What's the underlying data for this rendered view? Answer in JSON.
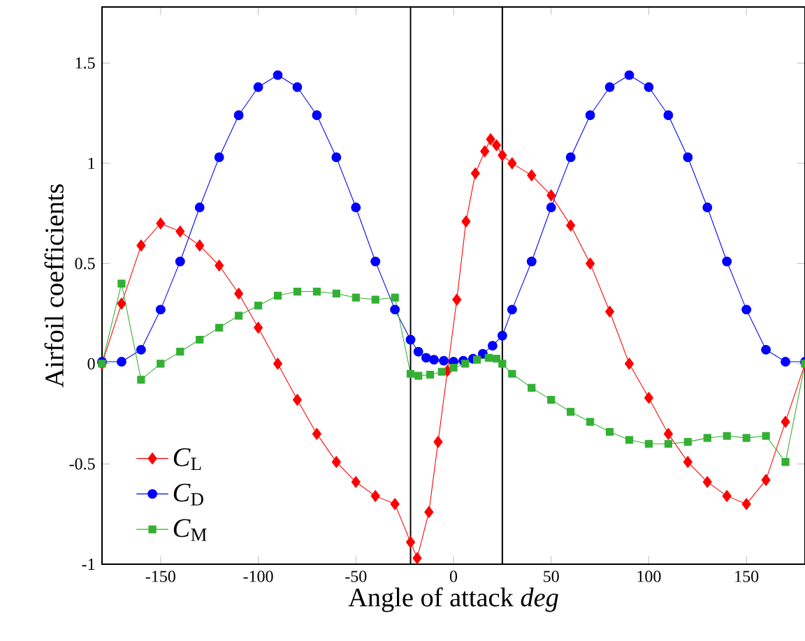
{
  "chart_data": {
    "type": "line",
    "xlabel": "Angle of attack *deg*",
    "ylabel": "Airfoil coefficients",
    "xlim": [
      -180,
      180
    ],
    "ylim": [
      -1,
      1.78
    ],
    "xticks": [
      -150,
      -100,
      -50,
      0,
      50,
      100,
      150
    ],
    "yticks": [
      -1,
      -0.5,
      0,
      0.5,
      1,
      1.5
    ],
    "legend": "bottom left",
    "grid": false,
    "line_style": "solid",
    "ref_lines": [
      {
        "axis": "x",
        "value": -22,
        "color": "#000000"
      },
      {
        "axis": "x",
        "value": 25,
        "color": "#000000"
      }
    ],
    "series": [
      {
        "name": "*C*$_{L}$",
        "color": "#ff0000",
        "marker": "diamond",
        "x": [
          -180,
          -170,
          -160,
          -150,
          -140,
          -130,
          -120,
          -110,
          -100,
          -90,
          -80,
          -70,
          -60,
          -50,
          -40,
          -30,
          -22,
          -18.6,
          -12.6,
          -7.9,
          -3.1,
          1.7,
          6.4,
          11.2,
          16,
          19,
          22,
          25,
          30,
          40,
          50,
          60,
          70,
          80,
          90,
          100,
          110,
          120,
          130,
          140,
          150,
          160,
          170,
          180
        ],
        "values": [
          0,
          0.3,
          0.59,
          0.7,
          0.66,
          0.59,
          0.49,
          0.35,
          0.18,
          0,
          -0.18,
          -0.35,
          -0.49,
          -0.59,
          -0.66,
          -0.7,
          -0.89,
          -0.97,
          -0.74,
          -0.39,
          -0.035,
          0.32,
          0.71,
          0.95,
          1.06,
          1.12,
          1.09,
          1.04,
          1.0,
          0.94,
          0.84,
          0.69,
          0.5,
          0.26,
          0,
          -0.17,
          -0.35,
          -0.49,
          -0.59,
          -0.66,
          -0.7,
          -0.58,
          -0.29,
          0
        ]
      },
      {
        "name": "*C*$_{D}$",
        "color": "#0000ff",
        "marker": "circle",
        "x": [
          -180,
          -170,
          -160,
          -150,
          -140,
          -130,
          -120,
          -110,
          -100,
          -90,
          -80,
          -70,
          -60,
          -50,
          -40,
          -30,
          -22,
          -18,
          -14,
          -10,
          -5,
          0,
          5,
          10,
          15,
          20,
          25,
          30,
          40,
          50,
          60,
          70,
          80,
          90,
          100,
          110,
          120,
          130,
          140,
          150,
          160,
          170,
          180
        ],
        "values": [
          0.01,
          0.01,
          0.07,
          0.27,
          0.51,
          0.78,
          1.03,
          1.24,
          1.38,
          1.44,
          1.38,
          1.24,
          1.03,
          0.78,
          0.51,
          0.27,
          0.12,
          0.06,
          0.03,
          0.02,
          0.015,
          0.01,
          0.015,
          0.025,
          0.05,
          0.09,
          0.14,
          0.27,
          0.51,
          0.78,
          1.03,
          1.24,
          1.38,
          1.44,
          1.38,
          1.24,
          1.03,
          0.78,
          0.51,
          0.27,
          0.07,
          0.01,
          0.01
        ]
      },
      {
        "name": "*C*$_{M}$",
        "color": "#33b033",
        "marker": "square",
        "x": [
          -180,
          -170,
          -160,
          -150,
          -140,
          -130,
          -120,
          -110,
          -100,
          -90,
          -80,
          -70,
          -60,
          -50,
          -40,
          -30,
          -22,
          -18,
          -12,
          -6,
          0,
          6,
          12,
          18,
          22,
          25,
          30,
          40,
          50,
          60,
          70,
          80,
          90,
          100,
          110,
          120,
          130,
          140,
          150,
          160,
          170,
          180
        ],
        "values": [
          0,
          0.4,
          -0.08,
          0,
          0.06,
          0.12,
          0.18,
          0.24,
          0.29,
          0.34,
          0.36,
          0.36,
          0.35,
          0.33,
          0.32,
          0.33,
          -0.05,
          -0.06,
          -0.055,
          -0.04,
          -0.02,
          0,
          0.02,
          0.03,
          0.025,
          0,
          -0.05,
          -0.12,
          -0.18,
          -0.24,
          -0.29,
          -0.34,
          -0.38,
          -0.4,
          -0.4,
          -0.39,
          -0.37,
          -0.36,
          -0.37,
          -0.36,
          -0.49,
          0
        ]
      }
    ]
  }
}
